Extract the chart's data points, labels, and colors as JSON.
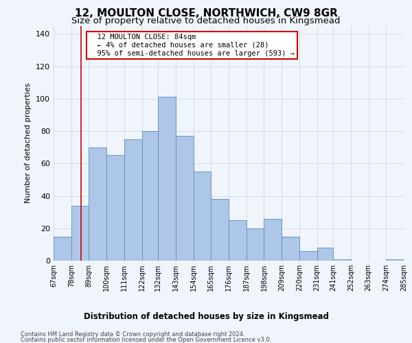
{
  "title": "12, MOULTON CLOSE, NORTHWICH, CW9 8GR",
  "subtitle": "Size of property relative to detached houses in Kingsmead",
  "xlabel": "Distribution of detached houses by size in Kingsmead",
  "ylabel": "Number of detached properties",
  "footer_line1": "Contains HM Land Registry data © Crown copyright and database right 2024.",
  "footer_line2": "Contains public sector information licensed under the Open Government Licence v3.0.",
  "annotation_title": "12 MOULTON CLOSE: 84sqm",
  "annotation_line1": "← 4% of detached houses are smaller (28)",
  "annotation_line2": "95% of semi-detached houses are larger (593) →",
  "bar_edges": [
    67,
    78,
    89,
    100,
    111,
    122,
    132,
    143,
    154,
    165,
    176,
    187,
    198,
    209,
    220,
    231,
    241,
    252,
    263,
    274,
    285
  ],
  "bar_heights": [
    15,
    34,
    70,
    65,
    75,
    80,
    101,
    77,
    55,
    38,
    25,
    20,
    26,
    15,
    6,
    8,
    1,
    0,
    0,
    1
  ],
  "bar_color": "#aec6e8",
  "bar_edge_color": "#5a8fc0",
  "vline_x": 84,
  "vline_color": "#cc0000",
  "ylim": [
    0,
    145
  ],
  "yticks": [
    0,
    20,
    40,
    60,
    80,
    100,
    120,
    140
  ],
  "grid_color": "#d0d8e8",
  "background_color": "#f0f4fb",
  "title_fontsize": 11,
  "subtitle_fontsize": 9.5,
  "annotation_box_color": "#ffffff",
  "annotation_box_edge_color": "#cc0000",
  "annotation_fontsize": 7.5,
  "ylabel_fontsize": 8,
  "ytick_fontsize": 8,
  "xtick_fontsize": 7,
  "xlabel_fontsize": 8.5,
  "footer_fontsize": 6
}
